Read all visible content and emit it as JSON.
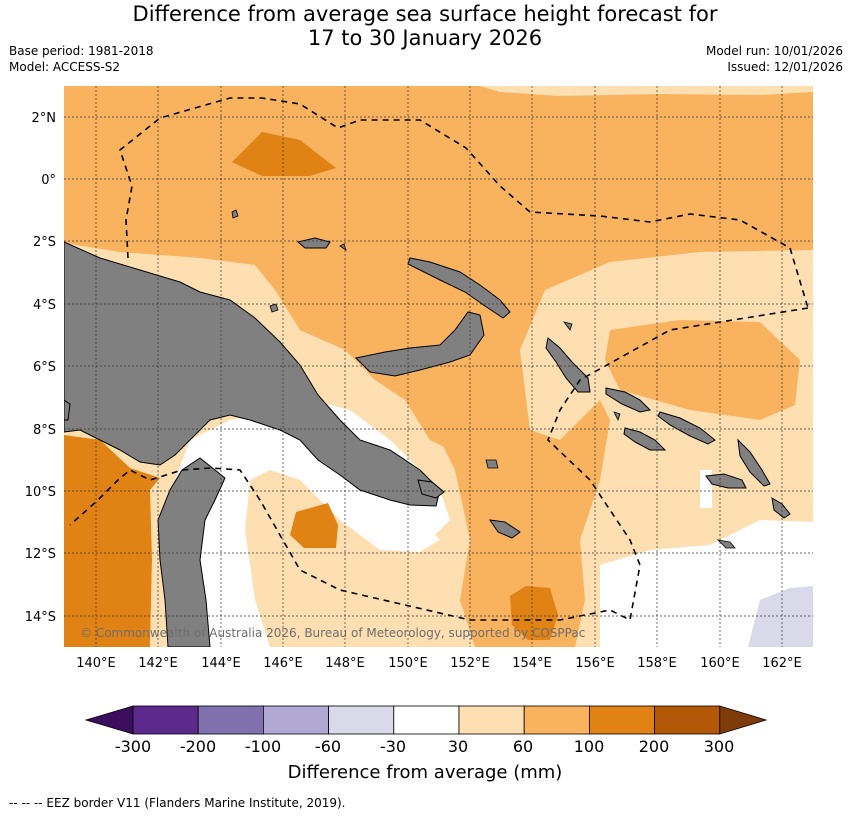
{
  "title_line1": "Difference from average sea surface height forecast for",
  "title_line2": "17 to 30 January 2026",
  "base_period": "Base period: 1981-2018",
  "model": "Model: ACCESS-S2",
  "model_run": "Model run: 10/01/2026",
  "issued": "Issued: 12/01/2026",
  "lat_labels": [
    "2°N",
    "0°",
    "2°S",
    "4°S",
    "6°S",
    "8°S",
    "10°S",
    "12°S",
    "14°S"
  ],
  "lon_labels": [
    "140°E",
    "142°E",
    "144°E",
    "146°E",
    "148°E",
    "150°E",
    "152°E",
    "154°E",
    "156°E",
    "158°E",
    "160°E",
    "162°E"
  ],
  "copyright": "© Commonwealth of Australia 2026, Bureau of Meteorology, supported by COSPPac",
  "colorbar": {
    "title": "Difference from average (mm)",
    "ticks": [
      "-300",
      "-200",
      "-100",
      "-60",
      "-30",
      "30",
      "60",
      "100",
      "200",
      "300"
    ],
    "colors": [
      "#3b0d5c",
      "#5b2a8c",
      "#8170ae",
      "#b1a9d3",
      "#d9d9ea",
      "#ffffff",
      "#fddfb2",
      "#f9b35f",
      "#e08214",
      "#b35806",
      "#7f3b08"
    ]
  },
  "eez_note": "--  --  -- EEZ border V11 (Flanders Marine Institute, 2019)."
}
